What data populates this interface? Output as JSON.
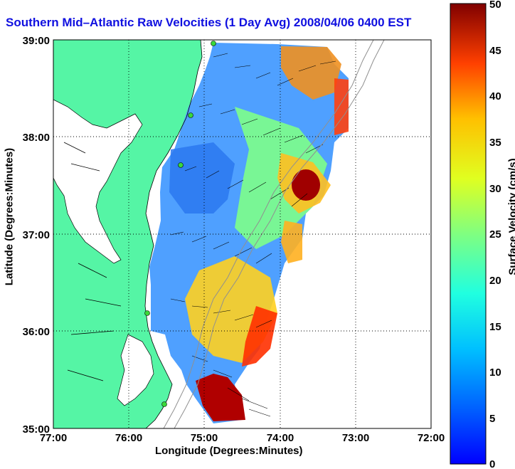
{
  "title": "Southern Mid–Atlantic Raw Velocities (1 Day Avg) 2008/04/06 0400 EST",
  "xlabel": "Longitude (Degrees:Minutes)",
  "ylabel": "Latitude (Degrees:Minutes)",
  "colorbar_label": "Surface Velocity (cm/s)",
  "chart_data": {
    "type": "map",
    "xlim": [
      "77:00 W",
      "72:00 W"
    ],
    "ylim": [
      "35:00 N",
      "39:00 N"
    ],
    "xticks": [
      "77:00",
      "76:00",
      "75:00",
      "74:00",
      "73:00",
      "72:00"
    ],
    "yticks": [
      "39:00",
      "38:00",
      "37:00",
      "36:00",
      "35:00"
    ],
    "colorbar": {
      "min": 0,
      "max": 50,
      "ticks": [
        "50",
        "45",
        "40",
        "35",
        "30",
        "25",
        "20",
        "15",
        "10",
        "5",
        "0"
      ],
      "colormap": "jet"
    },
    "grid": true,
    "land_color": "#55f5a5",
    "hf_radar_sites": 5
  }
}
